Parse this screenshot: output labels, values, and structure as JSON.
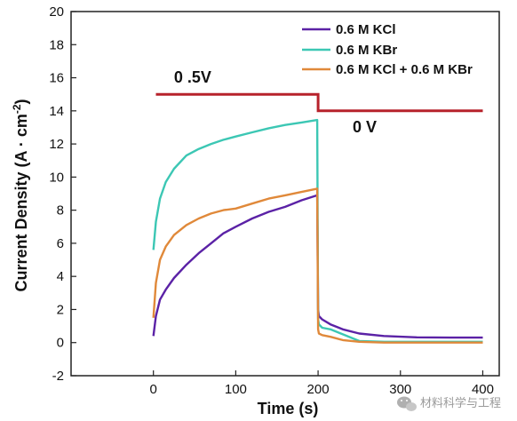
{
  "chart_data": {
    "type": "line",
    "xlabel": "Time (s)",
    "ylabel": "Current Density (A · cm",
    "ylabel_sup": "-2",
    "ylabel_close": ")",
    "xlim": [
      -100,
      420
    ],
    "ylim": [
      -2,
      20
    ],
    "xticks": [
      0,
      100,
      200,
      300,
      400
    ],
    "yticks": [
      -2,
      0,
      2,
      4,
      6,
      8,
      10,
      12,
      14,
      16,
      18,
      20
    ],
    "legend_position": "top-right",
    "series": [
      {
        "name": "0.6 M KCl",
        "color": "#5b22a6",
        "x": [
          0,
          3,
          8,
          15,
          25,
          40,
          55,
          70,
          85,
          100,
          120,
          140,
          160,
          180,
          199,
          200,
          201,
          205,
          215,
          230,
          250,
          280,
          320,
          360,
          400
        ],
        "y": [
          0.4,
          1.6,
          2.6,
          3.2,
          3.9,
          4.7,
          5.4,
          6.0,
          6.6,
          7.0,
          7.5,
          7.9,
          8.2,
          8.6,
          8.9,
          2.0,
          1.6,
          1.4,
          1.1,
          0.8,
          0.55,
          0.4,
          0.32,
          0.3,
          0.3
        ]
      },
      {
        "name": "0.6 M KBr",
        "color": "#3cc7b4",
        "x": [
          0,
          3,
          8,
          15,
          25,
          40,
          55,
          70,
          85,
          100,
          120,
          140,
          160,
          180,
          199,
          200,
          201,
          205,
          215,
          230,
          250,
          280,
          320,
          360,
          400
        ],
        "y": [
          5.6,
          7.3,
          8.7,
          9.7,
          10.5,
          11.3,
          11.7,
          12.0,
          12.25,
          12.45,
          12.7,
          12.95,
          13.15,
          13.3,
          13.45,
          1.4,
          1.1,
          0.9,
          0.8,
          0.5,
          0.1,
          0.05,
          0.05,
          0.05,
          0.05
        ]
      },
      {
        "name": "0.6 M KCl + 0.6 M KBr",
        "color": "#e0893a",
        "x": [
          0,
          3,
          8,
          15,
          25,
          40,
          55,
          70,
          85,
          100,
          120,
          140,
          160,
          180,
          199,
          200,
          201,
          205,
          215,
          230,
          250,
          280,
          320,
          360,
          400
        ],
        "y": [
          1.5,
          3.6,
          5.0,
          5.8,
          6.5,
          7.1,
          7.5,
          7.8,
          8.0,
          8.1,
          8.4,
          8.7,
          8.9,
          9.1,
          9.3,
          0.8,
          0.55,
          0.45,
          0.35,
          0.15,
          0.05,
          0.0,
          0.0,
          0.0,
          0.0
        ]
      }
    ],
    "potential_step": {
      "color": "#b7222b",
      "x": [
        3,
        200,
        200,
        400
      ],
      "y": [
        15,
        15,
        14,
        14
      ]
    },
    "annotations": [
      {
        "text": "0 .5V",
        "x": 25,
        "y": 15.7
      },
      {
        "text": "0 V",
        "x": 242,
        "y": 12.7
      }
    ]
  },
  "watermark": {
    "icon": "wechat-icon",
    "text": "材料科学与工程"
  }
}
